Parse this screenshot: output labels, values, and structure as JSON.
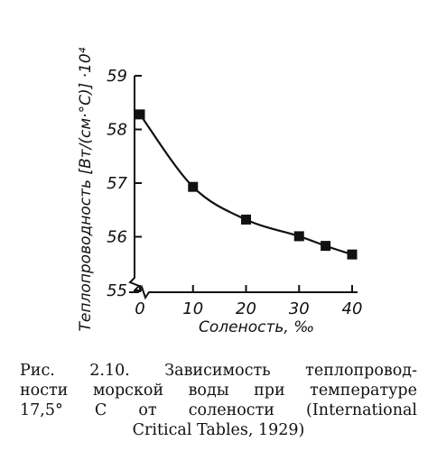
{
  "chart_data": {
    "type": "line",
    "ylabel": "Теплопроводность [Вт/(см·°С)] ·10⁴",
    "xlabel": "Соленость, ‰",
    "x": [
      0,
      10,
      20,
      30,
      35,
      40
    ],
    "y": [
      58.28,
      56.93,
      56.32,
      56.01,
      55.83,
      55.67
    ],
    "xticks": [
      "0",
      "10",
      "20",
      "30",
      "40"
    ],
    "yticks": [
      "55",
      "56",
      "57",
      "58",
      "59"
    ],
    "xlim": [
      0,
      40
    ],
    "ylim": [
      55,
      59
    ],
    "marker": "square",
    "grid": false
  },
  "caption": {
    "lines": [
      "Рис. 2.10. Зависимость теплопровод-",
      "ности морской воды при температуре",
      "17,5° С   от   солености   (International",
      "Critical Tables, 1929)"
    ]
  }
}
